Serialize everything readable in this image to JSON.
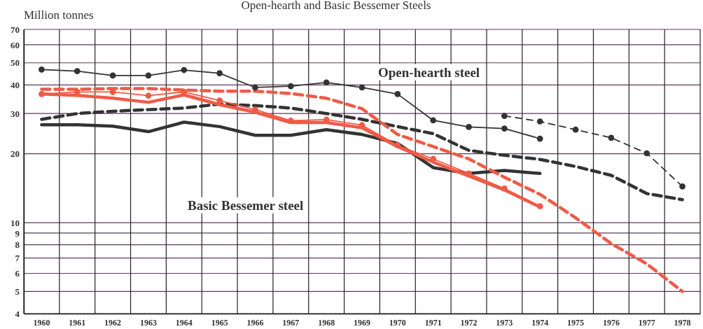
{
  "chart_data": {
    "type": "line",
    "title": "Open-hearth and Basic Bessemer Steels",
    "ylabel": "Million tonnes",
    "categories": [
      "1960",
      "1961",
      "1962",
      "1963",
      "1964",
      "1965",
      "1966",
      "1967",
      "1968",
      "1969",
      "1970",
      "1971",
      "1972",
      "1973",
      "1974",
      "1975",
      "1976",
      "1977",
      "1978"
    ],
    "log": true,
    "ylim": [
      4,
      70
    ],
    "yticks": [
      4,
      5,
      6,
      7,
      8,
      9,
      10,
      20,
      30,
      40,
      50,
      60,
      70
    ],
    "grid": true,
    "series": [
      {
        "color": "#333333",
        "marker": "circle",
        "line_style": "solid",
        "values": [
          46.7,
          46,
          44,
          44,
          46.5,
          45,
          39,
          39.5,
          41,
          39,
          36.5,
          28,
          26.2,
          25.8,
          23.3,
          null,
          null,
          null,
          null
        ]
      },
      {
        "color": "#333333",
        "marker": "circle",
        "line_style": "dashed",
        "values": [
          null,
          null,
          null,
          null,
          null,
          null,
          null,
          null,
          null,
          null,
          null,
          null,
          null,
          29.3,
          27.7,
          25.5,
          23.5,
          20.1,
          14.4
        ]
      },
      {
        "color": "#333333",
        "marker": "none",
        "line_style": "solid",
        "values": [
          26.8,
          26.8,
          26.4,
          25,
          27.5,
          26.3,
          24.1,
          24.1,
          25.5,
          24.3,
          22.2,
          17.4,
          16.4,
          16.9,
          16.4,
          null,
          null,
          null,
          null
        ]
      },
      {
        "color": "#333333",
        "marker": "none",
        "line_style": "dashed",
        "values": [
          28.3,
          30,
          30.7,
          31.2,
          31.7,
          33,
          32.5,
          31.7,
          30,
          28.3,
          26.3,
          24.5,
          20.7,
          19.7,
          18.9,
          17.6,
          16.1,
          13.4,
          12.6
        ]
      },
      {
        "color": "#f05a46",
        "marker": "circle",
        "line_style": "solid",
        "values": [
          36.5,
          37.3,
          37.3,
          35.9,
          37.3,
          34.2,
          31.2,
          27.9,
          28.2,
          26.7,
          21.8,
          19,
          16.4,
          14.1,
          11.8,
          null,
          null,
          null,
          null
        ]
      },
      {
        "color": "#f05a46",
        "marker": "none",
        "line_style": "solid",
        "values": [
          36.5,
          36,
          35,
          33.6,
          36.2,
          32.8,
          30.4,
          27.4,
          27.4,
          26,
          21.5,
          18.4,
          16,
          13.9,
          11.7,
          null,
          null,
          null,
          null
        ]
      },
      {
        "color": "#f05a46",
        "marker": "none",
        "line_style": "dashed",
        "values": [
          38.3,
          38.3,
          38.6,
          38.6,
          38,
          37.6,
          37.6,
          36.7,
          35,
          31.5,
          24.3,
          21.5,
          19,
          15.8,
          13.3,
          10.5,
          8.1,
          6.6,
          5
        ]
      }
    ],
    "annotations": [
      "Open-hearth steel",
      "Basic Bessemer steel"
    ]
  }
}
